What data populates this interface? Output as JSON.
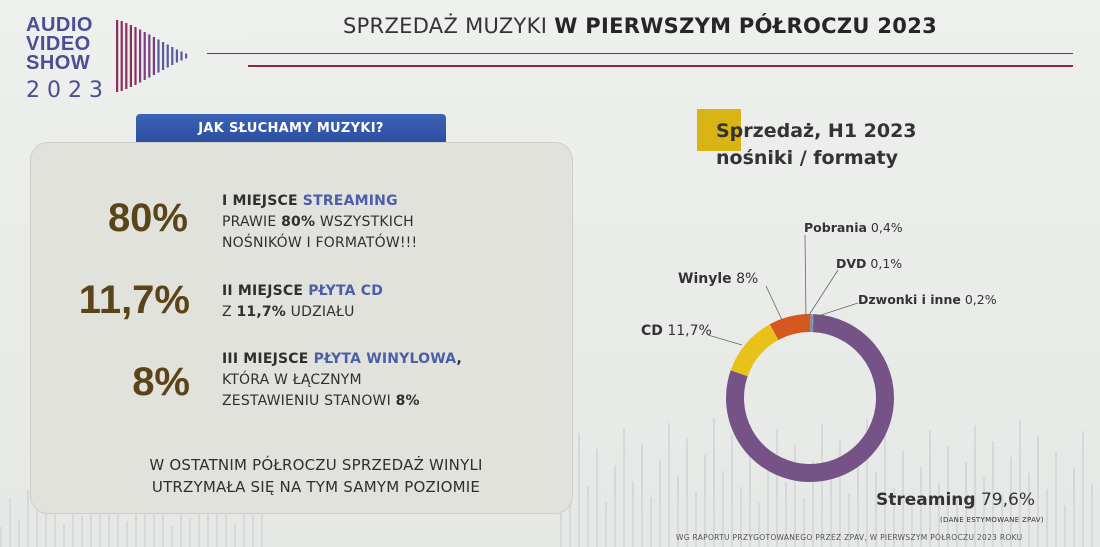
{
  "logo": {
    "line1": "AUDIO",
    "line2": "VIDEO",
    "line3": "SHOW",
    "year": "2023"
  },
  "title": {
    "normal": "SPRZEDAŻ MUZYKI ",
    "bold": "W PIERWSZYM PÓŁROCZU 2023"
  },
  "left_panel": {
    "tab": "JAK SŁUCHAMY MUZYKI?",
    "items": [
      {
        "percent": "80%",
        "line1_head": "I MIEJSCE ",
        "line1_accent": "STREAMING",
        "line2_a": "PRAWIE ",
        "line2_b": "80%",
        "line2_c": " WSZYSTKICH",
        "line3": "NOŚNIKÓW I FORMATÓW!!!"
      },
      {
        "percent": "11,7%",
        "line1_head": "II MIEJSCE ",
        "line1_accent": "PŁYTA CD",
        "line2_a": "Z ",
        "line2_b": "11,7%",
        "line2_c": " UDZIAŁU"
      },
      {
        "percent": "8%",
        "line1_head": "III MIEJSCE ",
        "line1_accent": "PŁYTA WINYLOWA",
        "line1_tail": ",",
        "line2": "KTÓRA W ŁĄCZNYM",
        "line3_a": "ZESTAWIENIU STANOWI ",
        "line3_b": "8%"
      }
    ],
    "closing_line1": "W OSTATNIM PÓŁROCZU SPRZEDAŻ WINYLI",
    "closing_line2": "UTRZYMAŁA SIĘ NA TYM SAMYM POZIOMIE"
  },
  "right_panel": {
    "title_line1": "Sprzedaż, H1 2023",
    "title_line2": "nośniki / formaty"
  },
  "chart_data": {
    "type": "pie",
    "categories": [
      "Streaming",
      "CD",
      "Winyle",
      "Pobrania",
      "DVD",
      "Dzwonki i inne"
    ],
    "value_labels": [
      "79,6%",
      "11,7%",
      "8%",
      "0,4%",
      "0,1%",
      "0,2%"
    ],
    "values": [
      79.6,
      11.7,
      8,
      0.4,
      0.1,
      0.2
    ],
    "colors": [
      "#765386",
      "#e8c21a",
      "#d4581f",
      "#6a8cc4",
      "#a8a8a8",
      "#4a7ab5"
    ],
    "note": "(DANE ESTYMOWANE ZPAV)"
  },
  "footer": "WG RAPORTU PRZYGOTOWANEGO PRZEZ ZPAV, W PIERWSZYM PÓŁROCZU 2023 ROKU"
}
